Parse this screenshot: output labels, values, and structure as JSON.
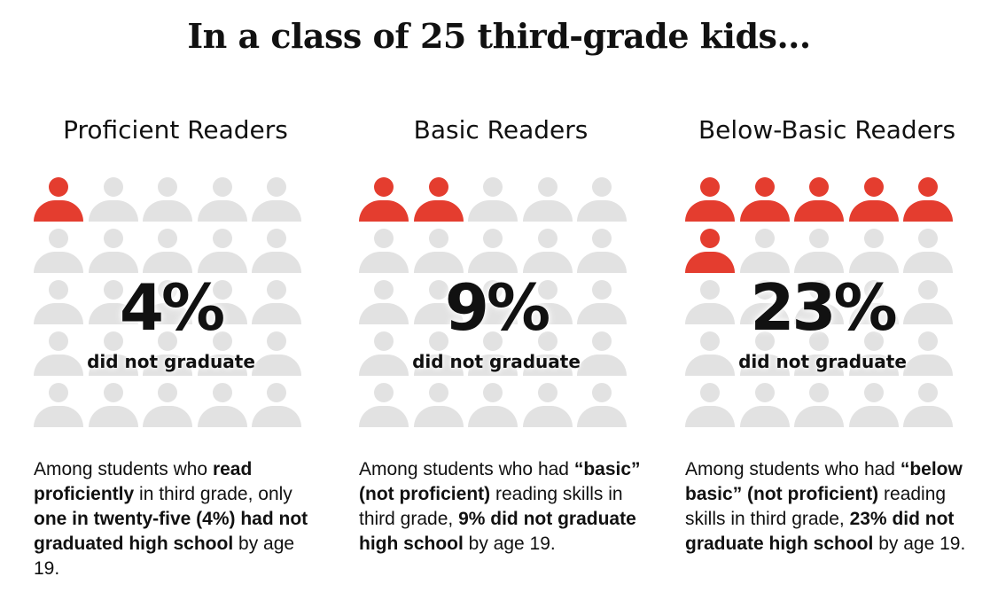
{
  "title": "In a class of 25 third-grade kids...",
  "colors": {
    "highlight": "#e43d2f",
    "neutral": "#e2e2e2"
  },
  "icon": "person-icon",
  "chart_data": {
    "type": "pictogram",
    "total_per_group": 25,
    "categories": [
      "Proficient Readers",
      "Basic Readers",
      "Below-Basic Readers"
    ],
    "values": [
      4,
      9,
      23
    ],
    "highlighted_icons": [
      1,
      2,
      6
    ],
    "unit": "%",
    "value_label": "did not graduate"
  },
  "panels": [
    {
      "heading": "Proficient Readers",
      "stat": "4%",
      "stat_label": "did not graduate",
      "desc": [
        {
          "t": "Among students who ",
          "b": false
        },
        {
          "t": "read proficiently",
          "b": true
        },
        {
          "t": " in third grade, only ",
          "b": false
        },
        {
          "t": "one in twenty-five (4%) had not graduated high school",
          "b": true
        },
        {
          "t": " by age 19.",
          "b": false
        }
      ]
    },
    {
      "heading": "Basic Readers",
      "stat": "9%",
      "stat_label": "did not graduate",
      "desc": [
        {
          "t": "Among students who had ",
          "b": false
        },
        {
          "t": "“basic” (not proficient)",
          "b": true
        },
        {
          "t": " reading skills in third grade, ",
          "b": false
        },
        {
          "t": "9% did not graduate high school",
          "b": true
        },
        {
          "t": " by age 19.",
          "b": false
        }
      ]
    },
    {
      "heading": "Below-Basic Readers",
      "stat": "23%",
      "stat_label": "did not graduate",
      "desc": [
        {
          "t": "Among students who had ",
          "b": false
        },
        {
          "t": "“below basic” (not proficient)",
          "b": true
        },
        {
          "t": " reading skills in third grade, ",
          "b": false
        },
        {
          "t": "23% did not graduate high school",
          "b": true
        },
        {
          "t": " by age 19.",
          "b": false
        }
      ]
    }
  ]
}
